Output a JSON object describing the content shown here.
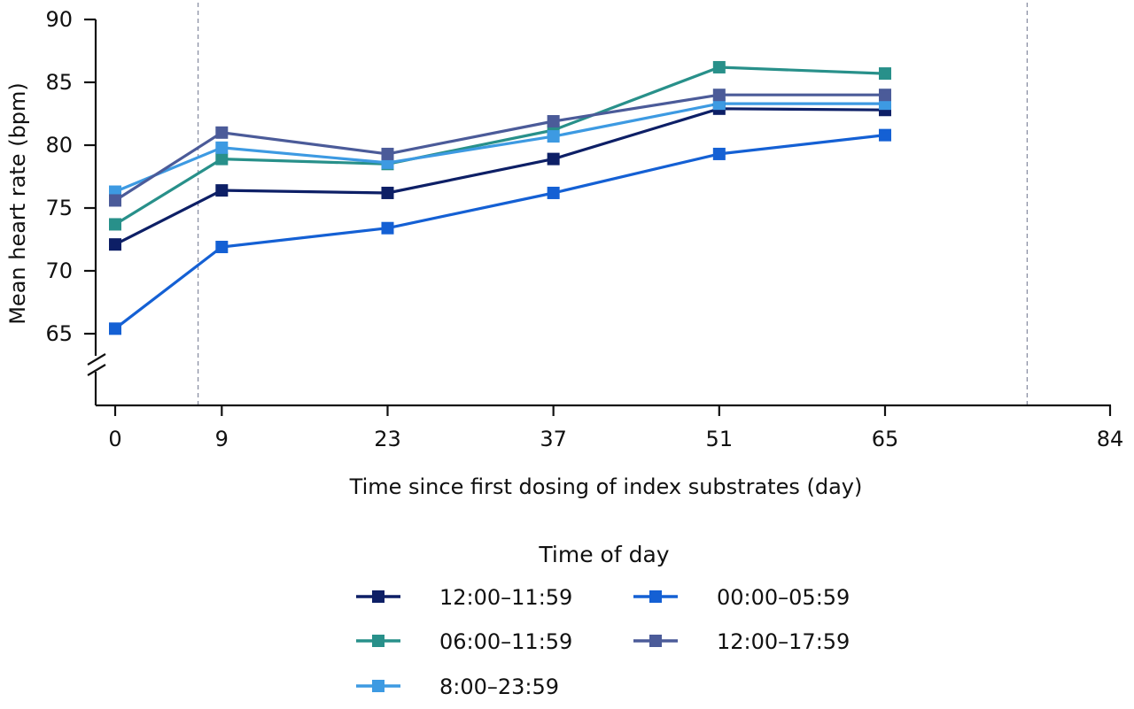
{
  "chart_data": {
    "type": "line",
    "xlabel": "Time since first dosing of index substrates (day)",
    "ylabel": "Mean heart rate (bpm)",
    "x_ticks": [
      0,
      9,
      23,
      37,
      51,
      65,
      84
    ],
    "y_ticks": [
      65,
      70,
      75,
      80,
      85,
      90
    ],
    "xlim": [
      0,
      84
    ],
    "ylim": [
      65,
      90
    ],
    "axis_break": "y",
    "reference_lines_x": [
      7,
      77
    ],
    "legend": {
      "title": "Time of day",
      "placement": "bottom"
    },
    "x": [
      0,
      9,
      23,
      37,
      51,
      65
    ],
    "series": [
      {
        "name": "12:00–11:59",
        "color": "#0d1f66",
        "values": [
          72.1,
          76.4,
          76.2,
          78.9,
          82.9,
          82.8
        ]
      },
      {
        "name": "00:00–05:59",
        "color": "#1460d4",
        "values": [
          65.4,
          71.9,
          73.4,
          76.2,
          79.3,
          80.8
        ]
      },
      {
        "name": "06:00–11:59",
        "color": "#28908a",
        "values": [
          73.7,
          78.9,
          78.5,
          81.2,
          86.2,
          85.7
        ]
      },
      {
        "name": "12:00–17:59",
        "color": "#4b5b99",
        "values": [
          75.6,
          81.0,
          79.3,
          81.9,
          84.0,
          84.0
        ]
      },
      {
        "name": "8:00–23:59",
        "color": "#3d9ae2",
        "values": [
          76.3,
          79.8,
          78.6,
          80.7,
          83.3,
          83.3
        ]
      }
    ]
  }
}
